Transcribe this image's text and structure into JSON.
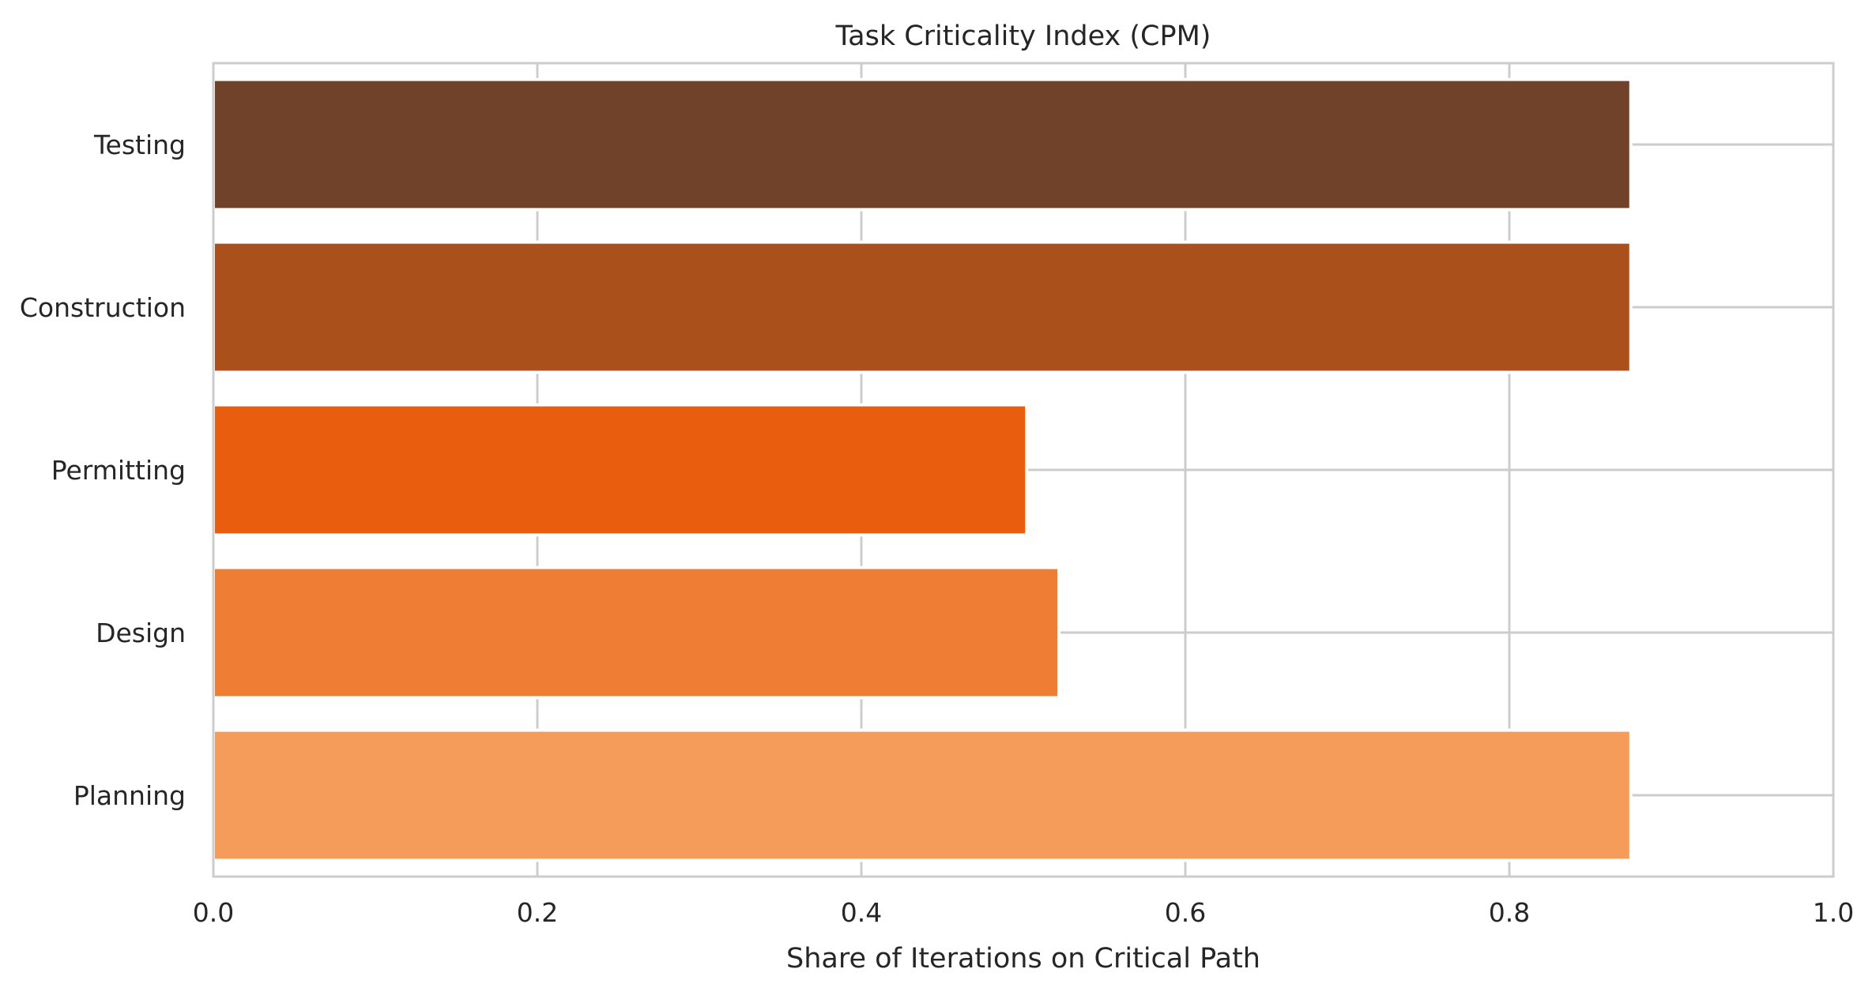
{
  "chart_data": {
    "type": "bar",
    "orientation": "horizontal",
    "title": "Task Criticality Index (CPM)",
    "xlabel": "Share of Iterations on Critical Path",
    "ylabel": "",
    "categories": [
      "Planning",
      "Design",
      "Permitting",
      "Construction",
      "Testing"
    ],
    "values": [
      0.875,
      0.522,
      0.502,
      0.875,
      0.875
    ],
    "colors": [
      "#f69c5b",
      "#ef7d34",
      "#e95e0e",
      "#aa501a",
      "#6f4229"
    ],
    "xlim": [
      0.0,
      1.0
    ],
    "xticks": [
      {
        "value": 0.0,
        "label": "0.0"
      },
      {
        "value": 0.2,
        "label": "0.2"
      },
      {
        "value": 0.4,
        "label": "0.4"
      },
      {
        "value": 0.6,
        "label": "0.6"
      },
      {
        "value": 0.8,
        "label": "0.8"
      },
      {
        "value": 1.0,
        "label": "1.0"
      }
    ],
    "grid": true,
    "legend": "none",
    "grid_color": "#cccccc",
    "frame_color": "#cccccc"
  }
}
